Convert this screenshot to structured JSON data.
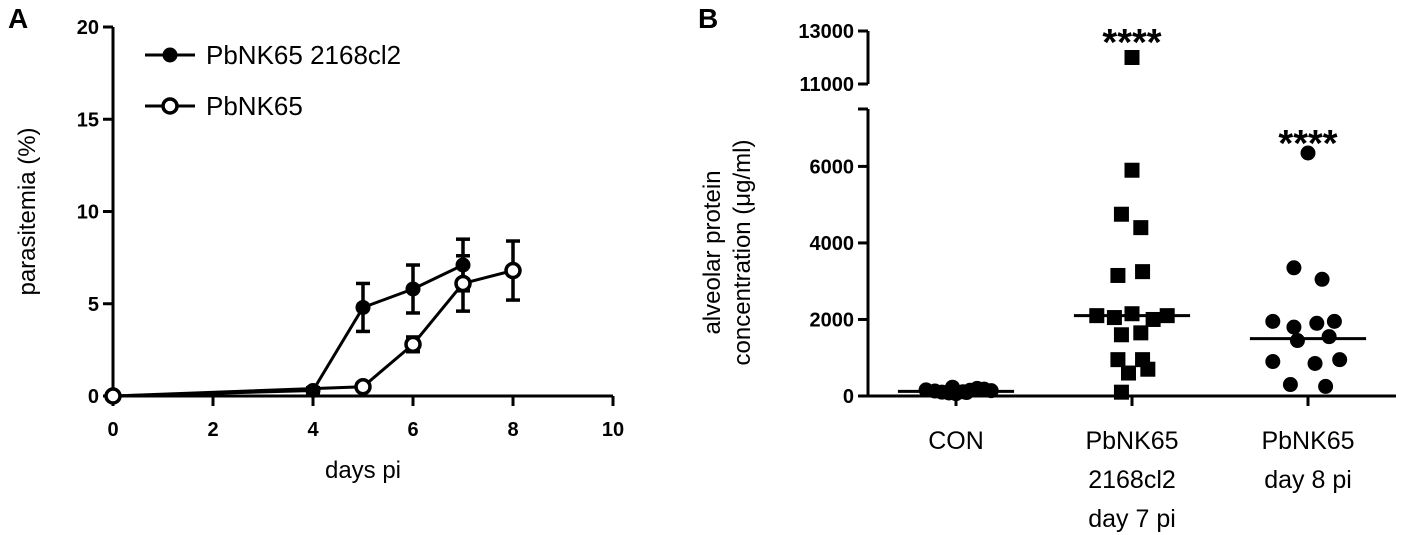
{
  "colors": {
    "ink": "#000000",
    "background": "#ffffff"
  },
  "chart_data": [
    {
      "panel": "A",
      "type": "line",
      "xlabel": "days pi",
      "ylabel": "parasitemia (%)",
      "xlim": [
        0,
        10
      ],
      "ylim": [
        0,
        20
      ],
      "xticks": [
        0,
        2,
        4,
        6,
        8,
        10
      ],
      "yticks": [
        0,
        5,
        10,
        15,
        20
      ],
      "grid": false,
      "legend_position": "top-left",
      "series": [
        {
          "name": "PbNK65 2168cl2",
          "marker": "filled-circle",
          "x": [
            0,
            4,
            5,
            6,
            7
          ],
          "y": [
            0.0,
            0.3,
            4.8,
            5.8,
            7.1
          ],
          "error": [
            0.0,
            0.15,
            1.3,
            1.3,
            1.4
          ]
        },
        {
          "name": "PbNK65",
          "marker": "open-circle",
          "x": [
            0,
            5,
            6,
            7,
            8
          ],
          "y": [
            0.0,
            0.5,
            2.8,
            6.1,
            6.8
          ],
          "error": [
            0.0,
            0.1,
            0.4,
            1.5,
            1.6
          ]
        }
      ]
    },
    {
      "panel": "B",
      "type": "scatter",
      "ylabel_lines": [
        "alveolar protein",
        "concentration (μg/ml)"
      ],
      "categories": [
        {
          "lines": [
            "CON"
          ]
        },
        {
          "lines": [
            "PbNK65",
            "2168cl2",
            "day 7 pi"
          ]
        },
        {
          "lines": [
            "PbNK65",
            "day 8 pi"
          ]
        }
      ],
      "y_segments": [
        {
          "range": [
            0,
            7500
          ],
          "ticks": [
            0,
            2000,
            4000,
            6000
          ]
        },
        {
          "range": [
            11000,
            13000
          ],
          "ticks": [
            11000,
            13000
          ]
        }
      ],
      "axis_break": true,
      "grid": false,
      "series": [
        {
          "category_index": 0,
          "marker": "filled-circle",
          "median": 120,
          "points": [
            {
              "offset": -0.17,
              "y": 160
            },
            {
              "offset": -0.12,
              "y": 130
            },
            {
              "offset": -0.08,
              "y": 100
            },
            {
              "offset": -0.04,
              "y": 80
            },
            {
              "offset": 0.0,
              "y": 60
            },
            {
              "offset": 0.04,
              "y": 110
            },
            {
              "offset": 0.08,
              "y": 150
            },
            {
              "offset": 0.12,
              "y": 200
            },
            {
              "offset": 0.16,
              "y": 180
            },
            {
              "offset": 0.2,
              "y": 140
            },
            {
              "offset": -0.02,
              "y": 230
            },
            {
              "offset": 0.06,
              "y": 90
            }
          ]
        },
        {
          "category_index": 1,
          "marker": "filled-square",
          "median": 2100,
          "points": [
            {
              "offset": 0.0,
              "y": 12000
            },
            {
              "offset": 0.0,
              "y": 5900
            },
            {
              "offset": -0.06,
              "y": 4750
            },
            {
              "offset": 0.05,
              "y": 4400
            },
            {
              "offset": -0.08,
              "y": 3150
            },
            {
              "offset": 0.06,
              "y": 3250
            },
            {
              "offset": -0.2,
              "y": 2100
            },
            {
              "offset": -0.1,
              "y": 2050
            },
            {
              "offset": 0.0,
              "y": 2150
            },
            {
              "offset": 0.12,
              "y": 2000
            },
            {
              "offset": 0.2,
              "y": 2100
            },
            {
              "offset": -0.06,
              "y": 1600
            },
            {
              "offset": 0.05,
              "y": 1650
            },
            {
              "offset": -0.08,
              "y": 950
            },
            {
              "offset": 0.06,
              "y": 950
            },
            {
              "offset": -0.02,
              "y": 600
            },
            {
              "offset": 0.09,
              "y": 700
            },
            {
              "offset": -0.06,
              "y": 100
            }
          ]
        },
        {
          "category_index": 2,
          "marker": "filled-circle",
          "median": 1500,
          "points": [
            {
              "offset": 0.0,
              "y": 6350
            },
            {
              "offset": -0.08,
              "y": 3350
            },
            {
              "offset": 0.08,
              "y": 3050
            },
            {
              "offset": -0.2,
              "y": 1950
            },
            {
              "offset": -0.08,
              "y": 1800
            },
            {
              "offset": 0.05,
              "y": 1900
            },
            {
              "offset": 0.15,
              "y": 1950
            },
            {
              "offset": -0.06,
              "y": 1450
            },
            {
              "offset": 0.12,
              "y": 1550
            },
            {
              "offset": -0.2,
              "y": 900
            },
            {
              "offset": 0.04,
              "y": 850
            },
            {
              "offset": 0.18,
              "y": 950
            },
            {
              "offset": -0.1,
              "y": 300
            },
            {
              "offset": 0.1,
              "y": 250
            }
          ]
        }
      ],
      "annotations": [
        {
          "category_index": 1,
          "text": "****",
          "y": 13000
        },
        {
          "category_index": 2,
          "text": "****",
          "y": 6900
        }
      ]
    }
  ],
  "panels": {
    "a_label": "A",
    "b_label": "B"
  }
}
